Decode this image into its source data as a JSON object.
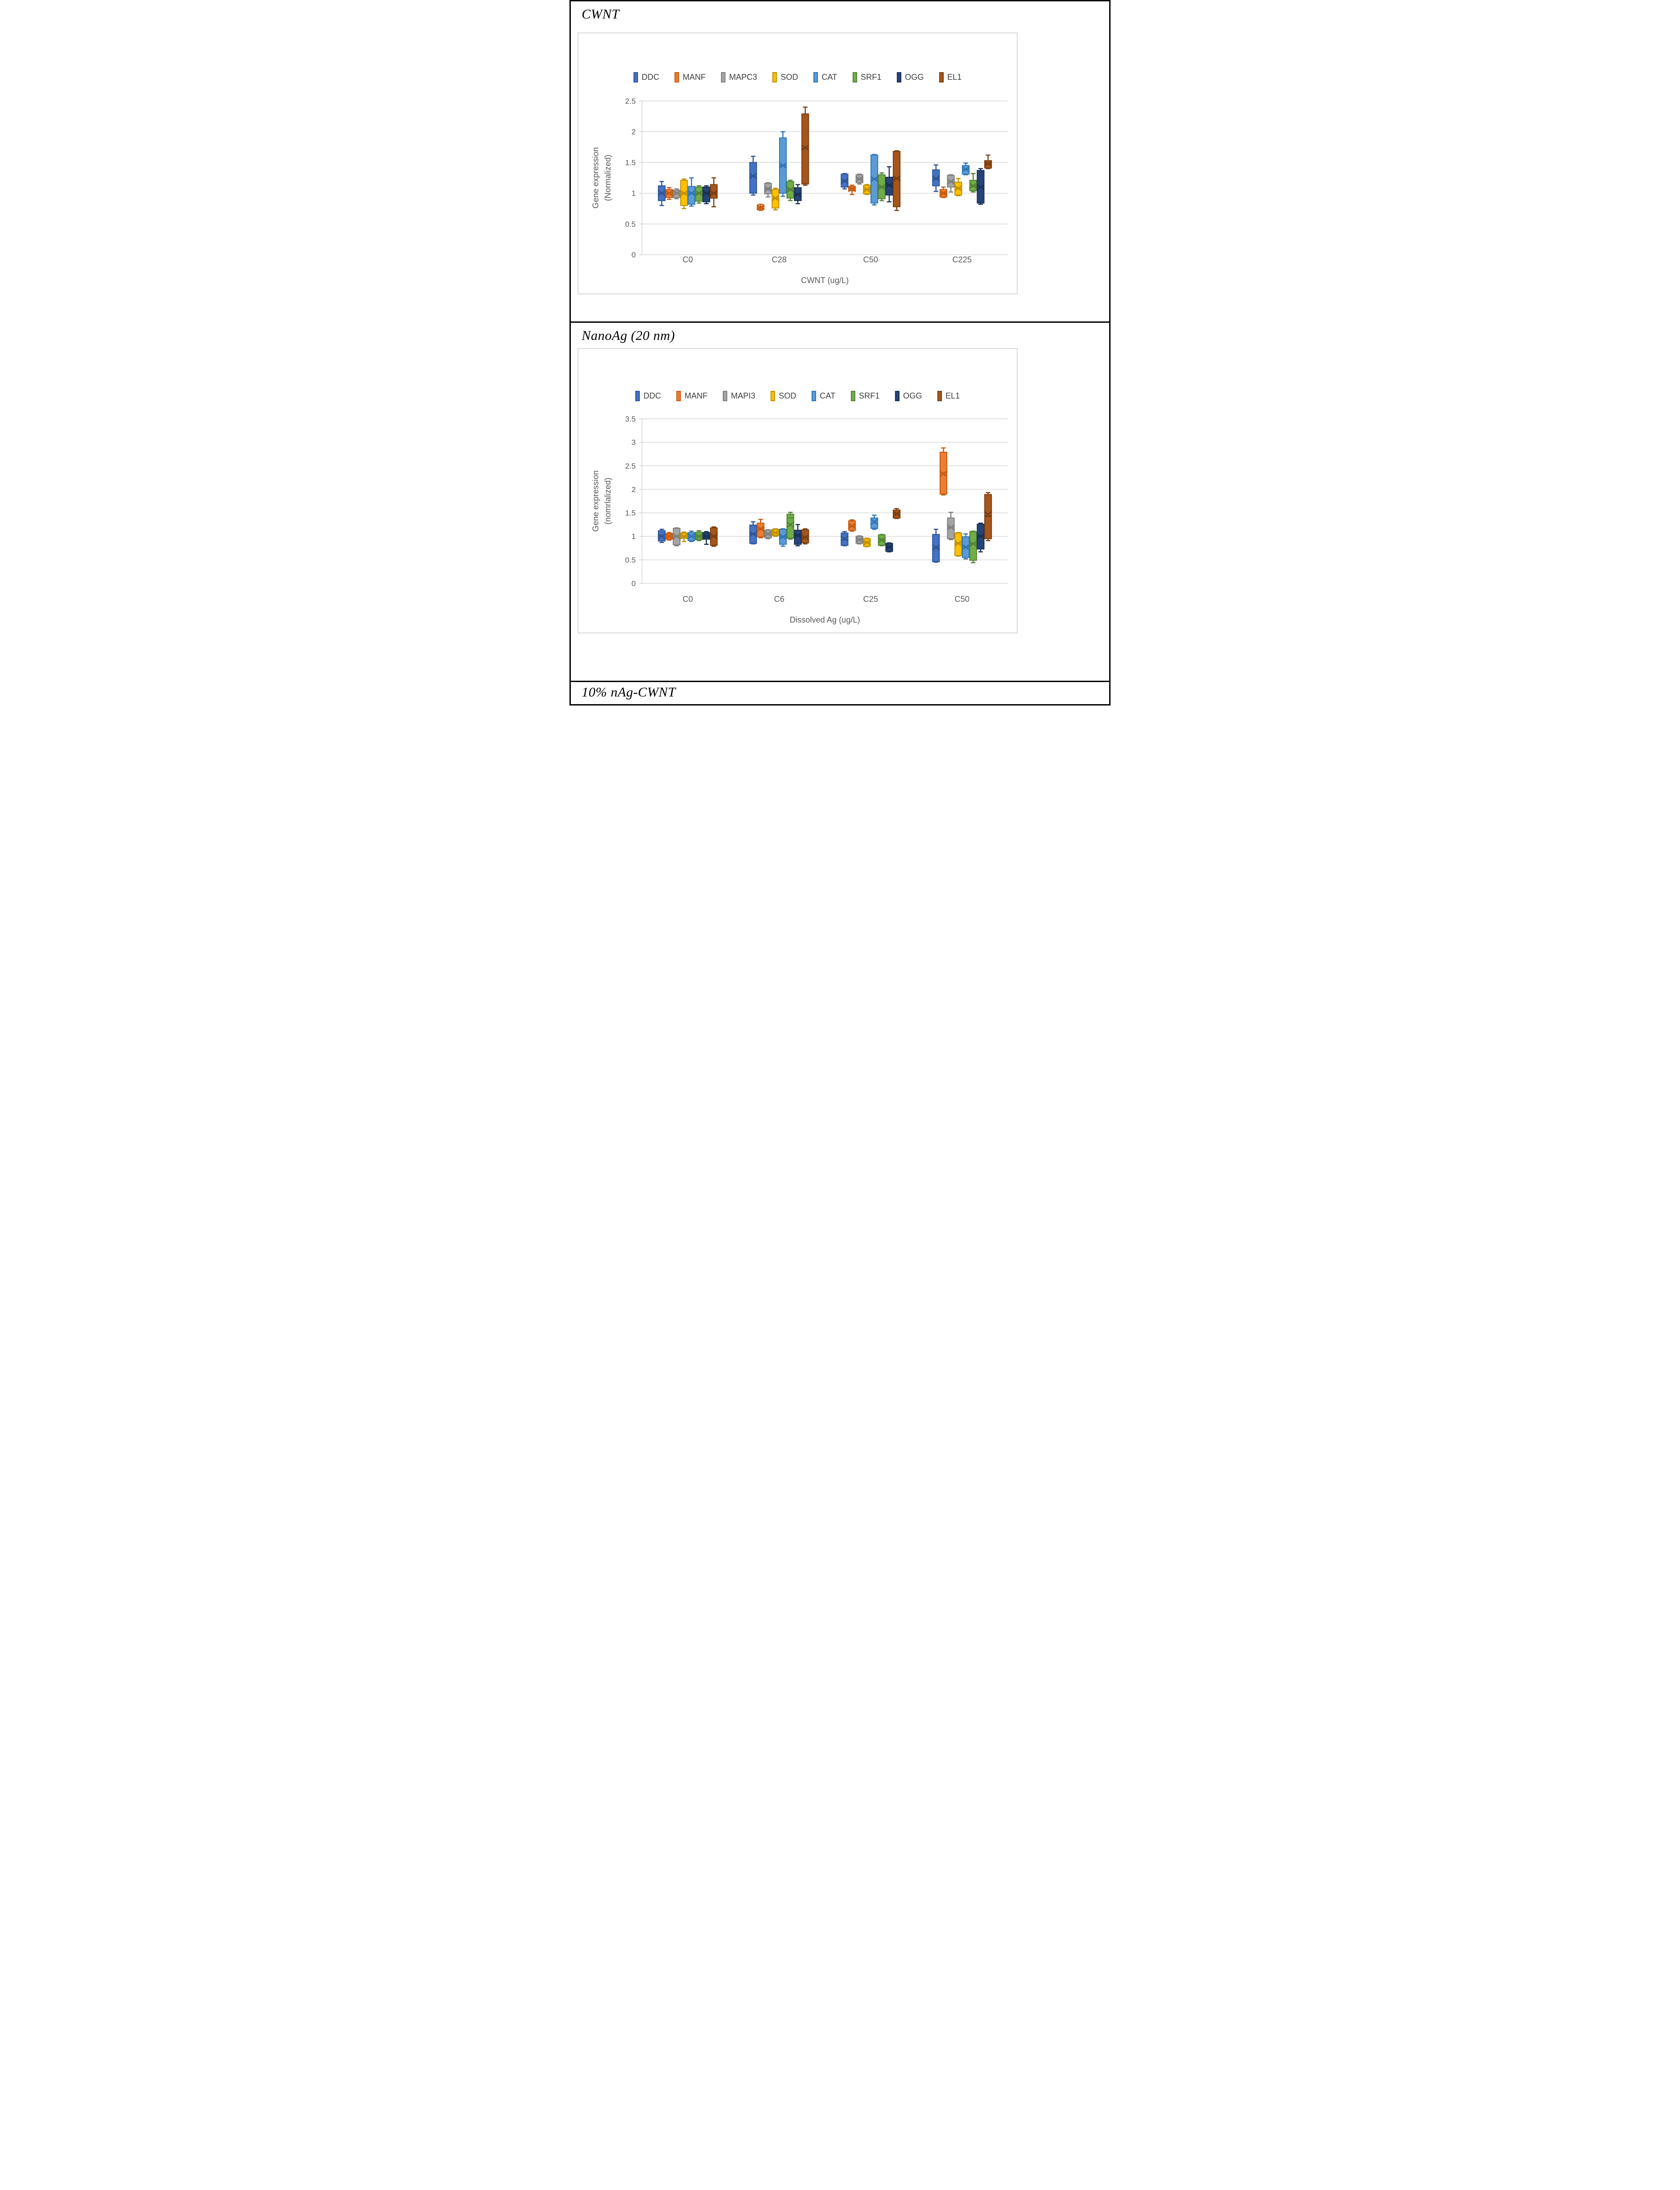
{
  "panels": {
    "first_title": "CWNT",
    "second_title": "NanoAg (20 nm)",
    "third_title": "10% nAg-CWNT"
  },
  "chart_data": [
    {
      "type": "box",
      "panel_title": "CWNT",
      "categories": [
        "C0",
        "C28",
        "C50",
        "C225"
      ],
      "xlabel": "CWNT (ug/L)",
      "ylabel_lines": [
        "Gene expression",
        "(Normalized)"
      ],
      "ylim": [
        0,
        2.5
      ],
      "ytick_step": 0.5,
      "grid": true,
      "legend_position": "top",
      "box_format": [
        "whisker_low",
        "q1",
        "median",
        "q3",
        "whisker_high",
        "mean"
      ],
      "series": [
        {
          "name": "DDC",
          "fill": "#4472C4",
          "stroke": "#2F5597",
          "boxes": [
            [
              0.8,
              0.88,
              1.0,
              1.12,
              1.19,
              1.0
            ],
            [
              0.97,
              1.0,
              1.27,
              1.5,
              1.6,
              1.28
            ],
            [
              1.07,
              1.1,
              1.2,
              1.31,
              1.32,
              1.2
            ],
            [
              1.03,
              1.12,
              1.24,
              1.38,
              1.46,
              1.24
            ]
          ]
        },
        {
          "name": "MANF",
          "fill": "#ED7D31",
          "stroke": "#C55A11",
          "boxes": [
            [
              0.9,
              0.93,
              1.0,
              1.06,
              1.09,
              1.0
            ],
            [
              0.72,
              0.74,
              0.76,
              0.79,
              0.82,
              0.77
            ],
            [
              0.98,
              1.04,
              1.07,
              1.11,
              1.13,
              1.07
            ],
            [
              0.93,
              0.94,
              1.0,
              1.06,
              1.1,
              1.0
            ]
          ]
        },
        {
          "name": "MAPC3",
          "fill": "#A5A5A5",
          "stroke": "#7F7F7F",
          "boxes": [
            [
              0.91,
              0.93,
              1.0,
              1.05,
              1.07,
              1.0
            ],
            [
              0.94,
              0.99,
              1.07,
              1.16,
              1.17,
              1.07
            ],
            [
              1.15,
              1.17,
              1.23,
              1.3,
              1.31,
              1.23
            ],
            [
              1.02,
              1.1,
              1.19,
              1.29,
              1.3,
              1.19
            ]
          ]
        },
        {
          "name": "SOD",
          "fill": "#FFC000",
          "stroke": "#BF9000",
          "boxes": [
            [
              0.75,
              0.8,
              1.0,
              1.21,
              1.23,
              1.0
            ],
            [
              0.73,
              0.76,
              0.92,
              1.06,
              1.08,
              0.92
            ],
            [
              0.98,
              0.99,
              1.06,
              1.13,
              1.14,
              1.06
            ],
            [
              0.96,
              0.97,
              1.08,
              1.18,
              1.24,
              1.08
            ]
          ]
        },
        {
          "name": "CAT",
          "fill": "#5B9BD5",
          "stroke": "#2E75B6",
          "boxes": [
            [
              0.79,
              0.82,
              1.0,
              1.11,
              1.25,
              1.0
            ],
            [
              0.95,
              1.0,
              1.45,
              1.9,
              2.0,
              1.45
            ],
            [
              0.81,
              0.84,
              1.23,
              1.62,
              1.63,
              1.23
            ],
            [
              1.3,
              1.31,
              1.39,
              1.45,
              1.49,
              1.39
            ]
          ]
        },
        {
          "name": "SRF1",
          "fill": "#70AD47",
          "stroke": "#548235",
          "boxes": [
            [
              0.84,
              0.87,
              1.0,
              1.1,
              1.12,
              1.0
            ],
            [
              0.88,
              0.92,
              1.06,
              1.19,
              1.21,
              1.06
            ],
            [
              0.88,
              0.91,
              1.1,
              1.3,
              1.33,
              1.1
            ],
            [
              1.02,
              1.04,
              1.12,
              1.21,
              1.32,
              1.12
            ]
          ]
        },
        {
          "name": "OGG",
          "fill": "#264478",
          "stroke": "#1A3156",
          "boxes": [
            [
              0.83,
              0.86,
              1.0,
              1.1,
              1.12,
              1.0
            ],
            [
              0.83,
              0.88,
              0.98,
              1.09,
              1.14,
              0.98
            ],
            [
              0.86,
              0.97,
              1.13,
              1.26,
              1.43,
              1.13
            ],
            [
              0.82,
              0.84,
              1.1,
              1.37,
              1.4,
              1.1
            ]
          ]
        },
        {
          "name": "EL1",
          "fill": "#A6561C",
          "stroke": "#7A3E11",
          "boxes": [
            [
              0.78,
              0.92,
              1.0,
              1.14,
              1.25,
              1.0
            ],
            [
              1.13,
              1.15,
              1.73,
              2.29,
              2.4,
              1.74
            ],
            [
              0.72,
              0.78,
              1.24,
              1.68,
              1.69,
              1.24
            ],
            [
              1.4,
              1.41,
              1.48,
              1.53,
              1.62,
              1.48
            ]
          ]
        }
      ]
    },
    {
      "type": "box",
      "panel_title": "NanoAg (20 nm)",
      "categories": [
        "C0",
        "C6",
        "C25",
        "C50"
      ],
      "xlabel": "Dissolved Ag (ug/L)",
      "ylabel_lines": [
        "Gene expression",
        "(nomrlalized)"
      ],
      "ylim": [
        0,
        3.5
      ],
      "ytick_step": 0.5,
      "grid": true,
      "legend_position": "top",
      "box_format": [
        "whisker_low",
        "q1",
        "median",
        "q3",
        "whisker_high",
        "mean"
      ],
      "series": [
        {
          "name": "DDC",
          "fill": "#4472C4",
          "stroke": "#2F5597",
          "boxes": [
            [
              0.87,
              0.9,
              1.0,
              1.12,
              1.15,
              1.0
            ],
            [
              0.84,
              0.85,
              1.05,
              1.24,
              1.31,
              1.05
            ],
            [
              0.8,
              0.81,
              0.93,
              1.07,
              1.1,
              0.95
            ],
            [
              0.45,
              0.46,
              0.75,
              1.04,
              1.15,
              0.76
            ]
          ]
        },
        {
          "name": "MANF",
          "fill": "#ED7D31",
          "stroke": "#C55A11",
          "boxes": [
            [
              0.92,
              0.94,
              1.0,
              1.06,
              1.08,
              1.0
            ],
            [
              0.97,
              0.99,
              1.16,
              1.28,
              1.36,
              1.16
            ],
            [
              1.11,
              1.13,
              1.22,
              1.33,
              1.35,
              1.22
            ],
            [
              1.88,
              1.9,
              2.35,
              2.79,
              2.88,
              2.33
            ]
          ]
        },
        {
          "name": "MAPI3",
          "fill": "#A5A5A5",
          "stroke": "#7F7F7F",
          "boxes": [
            [
              0.8,
              0.82,
              1.0,
              1.17,
              1.18,
              1.0
            ],
            [
              0.95,
              0.97,
              1.05,
              1.13,
              1.14,
              1.05
            ],
            [
              0.84,
              0.85,
              0.93,
              1.0,
              1.01,
              0.93
            ],
            [
              0.93,
              0.95,
              1.19,
              1.39,
              1.51,
              1.19
            ]
          ]
        },
        {
          "name": "SOD",
          "fill": "#FFC000",
          "stroke": "#BF9000",
          "boxes": [
            [
              0.89,
              0.96,
              1.0,
              1.07,
              1.09,
              1.0
            ],
            [
              1.0,
              1.02,
              1.08,
              1.15,
              1.16,
              1.08
            ],
            [
              0.78,
              0.79,
              0.87,
              0.95,
              0.96,
              0.87
            ],
            [
              0.58,
              0.59,
              0.85,
              1.07,
              1.08,
              0.85
            ]
          ]
        },
        {
          "name": "CAT",
          "fill": "#5B9BD5",
          "stroke": "#2E75B6",
          "boxes": [
            [
              0.89,
              0.91,
              1.0,
              1.08,
              1.11,
              1.0
            ],
            [
              0.79,
              0.83,
              0.99,
              1.15,
              1.16,
              0.99
            ],
            [
              1.15,
              1.17,
              1.28,
              1.39,
              1.45,
              1.31
            ],
            [
              0.52,
              0.55,
              0.77,
              0.99,
              1.05,
              0.77
            ]
          ]
        },
        {
          "name": "SRF1",
          "fill": "#70AD47",
          "stroke": "#548235",
          "boxes": [
            [
              0.91,
              0.93,
              1.0,
              1.09,
              1.12,
              1.0
            ],
            [
              0.94,
              0.96,
              1.39,
              1.47,
              1.51,
              1.25
            ],
            [
              0.8,
              0.81,
              0.92,
              1.03,
              1.04,
              0.92
            ],
            [
              0.44,
              0.49,
              0.84,
              1.1,
              1.11,
              0.84
            ]
          ]
        },
        {
          "name": "OGG",
          "fill": "#264478",
          "stroke": "#1A3156",
          "boxes": [
            [
              0.83,
              0.94,
              1.0,
              1.08,
              1.1,
              1.0
            ],
            [
              0.8,
              0.83,
              1.02,
              1.13,
              1.25,
              1.02
            ],
            [
              0.67,
              0.68,
              0.77,
              0.85,
              0.86,
              0.77
            ],
            [
              0.67,
              0.73,
              1.0,
              1.26,
              1.28,
              1.0
            ]
          ]
        },
        {
          "name": "EL1",
          "fill": "#A6561C",
          "stroke": "#7A3E11",
          "boxes": [
            [
              0.79,
              0.81,
              1.0,
              1.18,
              1.2,
              1.0
            ],
            [
              0.84,
              0.86,
              0.98,
              1.14,
              1.16,
              0.98
            ],
            [
              1.38,
              1.39,
              1.48,
              1.56,
              1.59,
              1.48
            ],
            [
              0.91,
              0.95,
              1.42,
              1.89,
              1.93,
              1.47
            ]
          ]
        }
      ]
    }
  ]
}
